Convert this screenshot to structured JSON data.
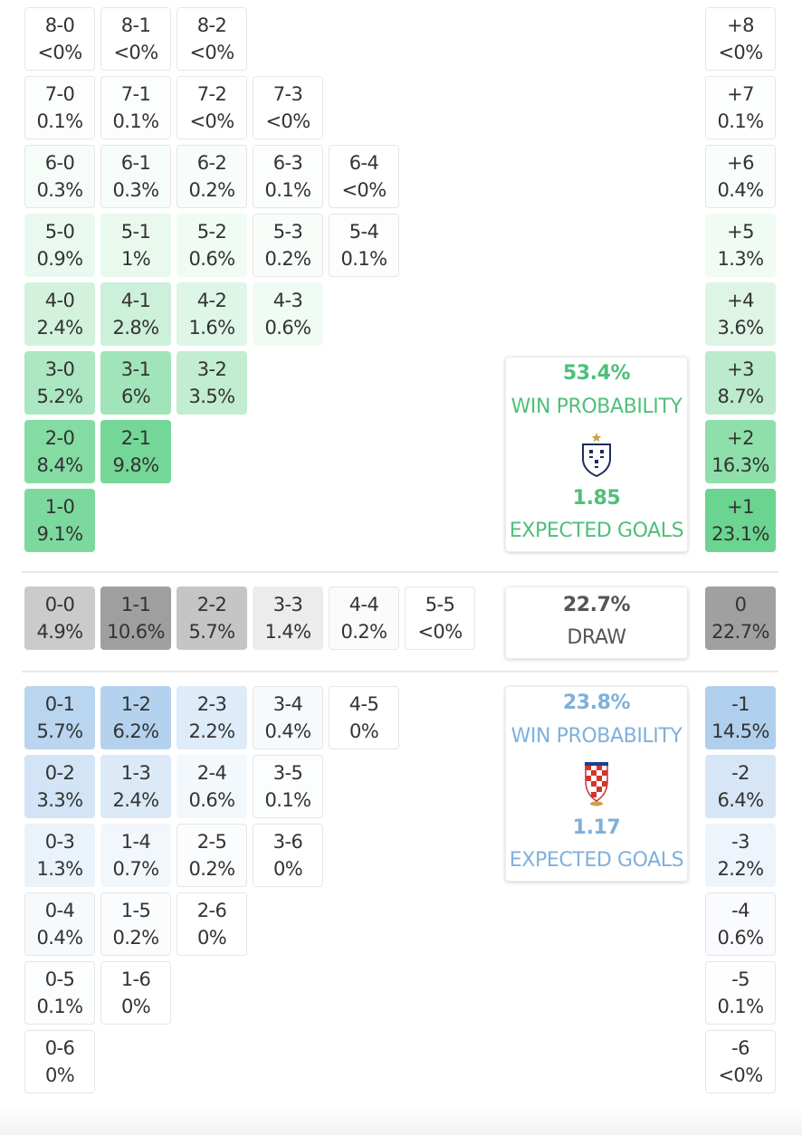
{
  "colors": {
    "home": "#63d28a",
    "away": "#86b6e4",
    "draw": "#9a9a9a",
    "home_text": "#4fbf7a",
    "away_text": "#7fb0dc",
    "draw_text": "#555555"
  },
  "home_summary": {
    "win_pct": "53.4%",
    "win_label": "WIN PROBABILITY",
    "xg": "1.85",
    "xg_label": "EXPECTED GOALS",
    "crest_icon": "england-crest-icon"
  },
  "draw_summary": {
    "pct": "22.7%",
    "label": "DRAW"
  },
  "away_summary": {
    "win_pct": "23.8%",
    "win_label": "WIN PROBABILITY",
    "xg": "1.17",
    "xg_label": "EXPECTED GOALS",
    "crest_icon": "croatia-crest-icon"
  },
  "chart_data": {
    "type": "heatmap",
    "scorelines": [
      {
        "score": "8-0",
        "pct": "<0%",
        "value": 0
      },
      {
        "score": "7-0",
        "pct": "0.1%",
        "value": 0.1
      },
      {
        "score": "8-1",
        "pct": "<0%",
        "value": 0
      },
      {
        "score": "6-0",
        "pct": "0.3%",
        "value": 0.3
      },
      {
        "score": "7-1",
        "pct": "0.1%",
        "value": 0.1
      },
      {
        "score": "8-2",
        "pct": "<0%",
        "value": 0
      },
      {
        "score": "5-0",
        "pct": "0.9%",
        "value": 0.9
      },
      {
        "score": "6-1",
        "pct": "0.3%",
        "value": 0.3
      },
      {
        "score": "7-2",
        "pct": "<0%",
        "value": 0
      },
      {
        "score": "4-0",
        "pct": "2.4%",
        "value": 2.4
      },
      {
        "score": "5-1",
        "pct": "1%",
        "value": 1
      },
      {
        "score": "6-2",
        "pct": "0.2%",
        "value": 0.2
      },
      {
        "score": "7-3",
        "pct": "<0%",
        "value": 0
      },
      {
        "score": "3-0",
        "pct": "5.2%",
        "value": 5.2
      },
      {
        "score": "4-1",
        "pct": "2.8%",
        "value": 2.8
      },
      {
        "score": "5-2",
        "pct": "0.6%",
        "value": 0.6
      },
      {
        "score": "6-3",
        "pct": "0.1%",
        "value": 0.1
      },
      {
        "score": "2-0",
        "pct": "8.4%",
        "value": 8.4
      },
      {
        "score": "3-1",
        "pct": "6%",
        "value": 6
      },
      {
        "score": "4-2",
        "pct": "1.6%",
        "value": 1.6
      },
      {
        "score": "5-3",
        "pct": "0.2%",
        "value": 0.2
      },
      {
        "score": "6-4",
        "pct": "<0%",
        "value": 0
      },
      {
        "score": "1-0",
        "pct": "9.1%",
        "value": 9.1
      },
      {
        "score": "2-1",
        "pct": "9.8%",
        "value": 9.8
      },
      {
        "score": "3-2",
        "pct": "3.5%",
        "value": 3.5
      },
      {
        "score": "4-3",
        "pct": "0.6%",
        "value": 0.6
      },
      {
        "score": "5-4",
        "pct": "0.1%",
        "value": 0.1
      },
      {
        "score": "0-0",
        "pct": "4.9%",
        "value": 4.9
      },
      {
        "score": "1-1",
        "pct": "10.6%",
        "value": 10.6
      },
      {
        "score": "2-2",
        "pct": "5.7%",
        "value": 5.7
      },
      {
        "score": "3-3",
        "pct": "1.4%",
        "value": 1.4
      },
      {
        "score": "4-4",
        "pct": "0.2%",
        "value": 0.2
      },
      {
        "score": "5-5",
        "pct": "<0%",
        "value": 0
      },
      {
        "score": "0-1",
        "pct": "5.7%",
        "value": 5.7
      },
      {
        "score": "1-2",
        "pct": "6.2%",
        "value": 6.2
      },
      {
        "score": "2-3",
        "pct": "2.2%",
        "value": 2.2
      },
      {
        "score": "3-4",
        "pct": "0.4%",
        "value": 0.4
      },
      {
        "score": "4-5",
        "pct": "0%",
        "value": 0
      },
      {
        "score": "0-2",
        "pct": "3.3%",
        "value": 3.3
      },
      {
        "score": "1-3",
        "pct": "2.4%",
        "value": 2.4
      },
      {
        "score": "2-4",
        "pct": "0.6%",
        "value": 0.6
      },
      {
        "score": "3-5",
        "pct": "0.1%",
        "value": 0.1
      },
      {
        "score": "0-3",
        "pct": "1.3%",
        "value": 1.3
      },
      {
        "score": "1-4",
        "pct": "0.7%",
        "value": 0.7
      },
      {
        "score": "2-5",
        "pct": "0.2%",
        "value": 0.2
      },
      {
        "score": "3-6",
        "pct": "0%",
        "value": 0
      },
      {
        "score": "0-4",
        "pct": "0.4%",
        "value": 0.4
      },
      {
        "score": "1-5",
        "pct": "0.2%",
        "value": 0.2
      },
      {
        "score": "2-6",
        "pct": "0%",
        "value": 0
      },
      {
        "score": "0-5",
        "pct": "0.1%",
        "value": 0.1
      },
      {
        "score": "1-6",
        "pct": "0%",
        "value": 0
      },
      {
        "score": "0-6",
        "pct": "0%",
        "value": 0
      }
    ],
    "margins": [
      {
        "margin": "+8",
        "pct": "<0%",
        "value": 0
      },
      {
        "margin": "+7",
        "pct": "0.1%",
        "value": 0.1
      },
      {
        "margin": "+6",
        "pct": "0.4%",
        "value": 0.4
      },
      {
        "margin": "+5",
        "pct": "1.3%",
        "value": 1.3
      },
      {
        "margin": "+4",
        "pct": "3.6%",
        "value": 3.6
      },
      {
        "margin": "+3",
        "pct": "8.7%",
        "value": 8.7
      },
      {
        "margin": "+2",
        "pct": "16.3%",
        "value": 16.3
      },
      {
        "margin": "+1",
        "pct": "23.1%",
        "value": 23.1
      },
      {
        "margin": "0",
        "pct": "22.7%",
        "value": 22.7
      },
      {
        "margin": "-1",
        "pct": "14.5%",
        "value": 14.5
      },
      {
        "margin": "-2",
        "pct": "6.4%",
        "value": 6.4
      },
      {
        "margin": "-3",
        "pct": "2.2%",
        "value": 2.2
      },
      {
        "margin": "-4",
        "pct": "0.6%",
        "value": 0.6
      },
      {
        "margin": "-5",
        "pct": "0.1%",
        "value": 0.1
      },
      {
        "margin": "-6",
        "pct": "<0%",
        "value": 0
      }
    ]
  }
}
